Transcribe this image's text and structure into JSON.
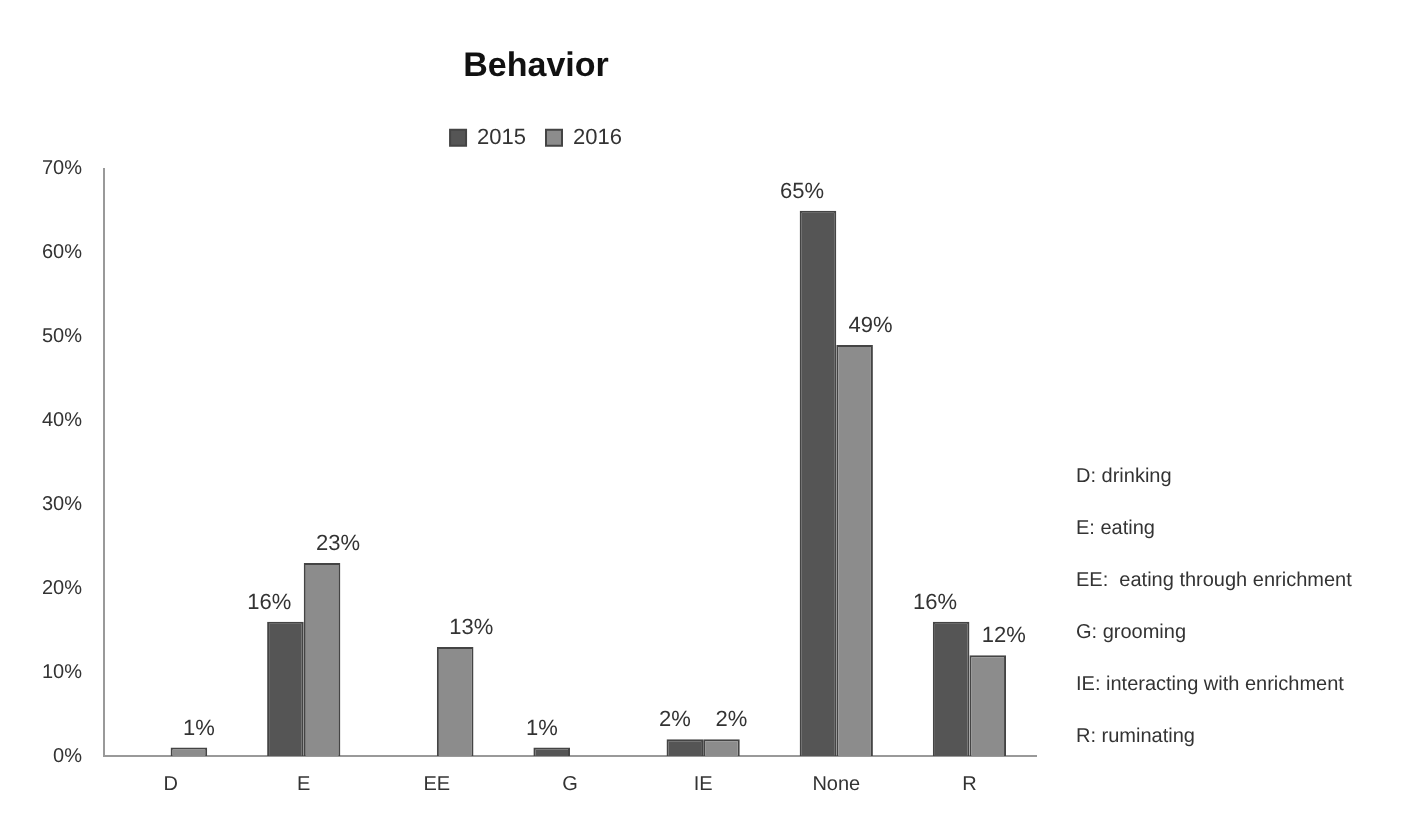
{
  "chart_data": {
    "type": "bar",
    "title": "Behavior",
    "categories": [
      "D",
      "E",
      "EE",
      "G",
      "IE",
      "None",
      "R"
    ],
    "series": [
      {
        "name": "2015",
        "color": "#555555",
        "values": [
          null,
          16,
          null,
          1,
          2,
          65,
          16
        ],
        "value_labels": [
          null,
          "16%",
          null,
          "1%",
          "2%",
          "65%",
          "16%"
        ]
      },
      {
        "name": "2016",
        "color": "#8c8c8c",
        "values": [
          1,
          23,
          13,
          null,
          2,
          49,
          12
        ],
        "value_labels": [
          "1%",
          "23%",
          "13%",
          null,
          "2%",
          "49%",
          "12%"
        ]
      }
    ],
    "ylim": [
      0,
      70
    ],
    "yticks": [
      {
        "value": 0,
        "label": "0%"
      },
      {
        "value": 10,
        "label": "10%"
      },
      {
        "value": 20,
        "label": "20%"
      },
      {
        "value": 30,
        "label": "30%"
      },
      {
        "value": 40,
        "label": "40%"
      },
      {
        "value": 50,
        "label": "50%"
      },
      {
        "value": 60,
        "label": "60%"
      },
      {
        "value": 70,
        "label": "70%"
      }
    ],
    "legend": "top",
    "grid": false,
    "annotations": [
      "D: drinking",
      "E: eating",
      "EE:  eating through enrichment",
      "G: grooming",
      "IE: interacting with enrichment",
      "R: ruminating"
    ]
  }
}
